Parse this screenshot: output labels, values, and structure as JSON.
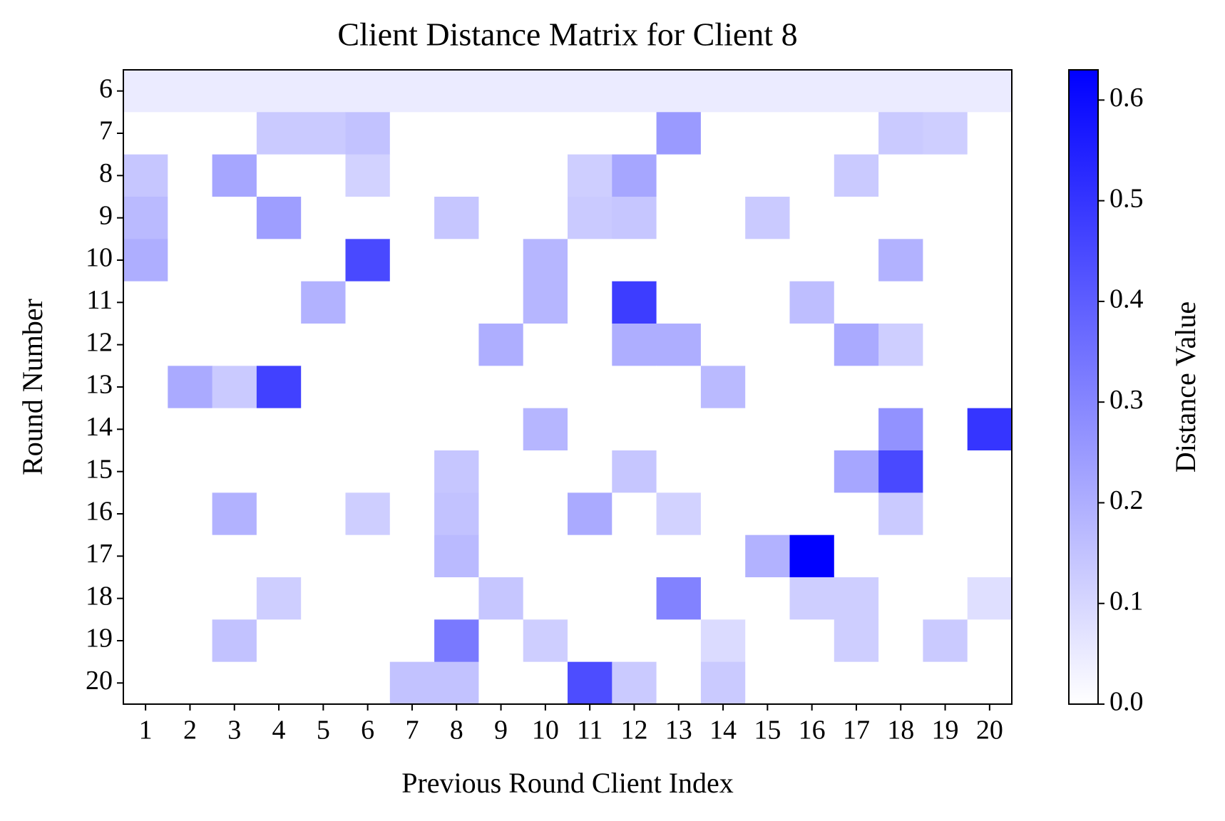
{
  "chart_data": {
    "type": "heatmap",
    "title": "Client Distance Matrix for Client 8",
    "x_label": "Previous Round Client Index",
    "y_label": "Round Number",
    "categories": [
      1,
      2,
      3,
      4,
      5,
      6,
      7,
      8,
      9,
      10,
      11,
      12,
      13,
      14,
      15,
      16,
      17,
      18,
      19,
      20
    ],
    "rows": [
      6,
      7,
      8,
      9,
      10,
      11,
      12,
      13,
      14,
      15,
      16,
      17,
      18,
      19,
      20
    ],
    "values": [
      [
        0.05,
        0.05,
        0.05,
        0.05,
        0.05,
        0.05,
        0.05,
        0.05,
        0.05,
        0.05,
        0.05,
        0.05,
        0.05,
        0.05,
        0.05,
        0.05,
        0.05,
        0.05,
        0.05,
        0.05
      ],
      [
        0,
        0,
        0,
        0.13,
        0.13,
        0.15,
        0,
        0,
        0,
        0,
        0,
        0,
        0.25,
        0,
        0,
        0,
        0,
        0.13,
        0.12,
        0
      ],
      [
        0.14,
        0,
        0.22,
        0,
        0,
        0.11,
        0,
        0,
        0,
        0,
        0.12,
        0.22,
        0,
        0,
        0,
        0,
        0.13,
        0,
        0,
        0
      ],
      [
        0.17,
        0,
        0,
        0.24,
        0,
        0,
        0,
        0.14,
        0,
        0,
        0.13,
        0.14,
        0,
        0,
        0.13,
        0,
        0,
        0,
        0,
        0
      ],
      [
        0.2,
        0,
        0,
        0,
        0,
        0.45,
        0,
        0,
        0,
        0.18,
        0,
        0,
        0,
        0,
        0,
        0,
        0,
        0.19,
        0,
        0
      ],
      [
        0,
        0,
        0,
        0,
        0.19,
        0,
        0,
        0,
        0,
        0.18,
        0,
        0.48,
        0,
        0,
        0,
        0.16,
        0,
        0,
        0,
        0
      ],
      [
        0,
        0,
        0,
        0,
        0,
        0,
        0,
        0,
        0.2,
        0,
        0,
        0.2,
        0.2,
        0,
        0,
        0,
        0.21,
        0.12,
        0,
        0
      ],
      [
        0,
        0.21,
        0.13,
        0.47,
        0,
        0,
        0,
        0,
        0,
        0,
        0,
        0,
        0,
        0.17,
        0,
        0,
        0,
        0,
        0,
        0
      ],
      [
        0,
        0,
        0,
        0,
        0,
        0,
        0,
        0,
        0,
        0.18,
        0,
        0,
        0,
        0,
        0,
        0,
        0,
        0.27,
        0,
        0.5
      ],
      [
        0,
        0,
        0,
        0,
        0,
        0,
        0,
        0.14,
        0,
        0,
        0,
        0.14,
        0,
        0,
        0,
        0,
        0.22,
        0.45,
        0,
        0
      ],
      [
        0,
        0,
        0.19,
        0,
        0,
        0.12,
        0,
        0.15,
        0,
        0,
        0.21,
        0,
        0.11,
        0,
        0,
        0,
        0,
        0.13,
        0,
        0
      ],
      [
        0,
        0,
        0,
        0,
        0,
        0,
        0,
        0.17,
        0,
        0,
        0,
        0,
        0,
        0,
        0.19,
        0.63,
        0,
        0,
        0,
        0
      ],
      [
        0,
        0,
        0,
        0.12,
        0,
        0,
        0,
        0,
        0.14,
        0,
        0,
        0,
        0.31,
        0,
        0,
        0.12,
        0.12,
        0,
        0,
        0.08
      ],
      [
        0,
        0,
        0.15,
        0,
        0,
        0,
        0,
        0.33,
        0,
        0.12,
        0,
        0,
        0,
        0.09,
        0,
        0,
        0.12,
        0,
        0.13,
        0
      ],
      [
        0,
        0,
        0,
        0,
        0,
        0,
        0.15,
        0.15,
        0,
        0,
        0.44,
        0.13,
        0,
        0.13,
        0,
        0,
        0,
        0,
        0,
        0
      ]
    ],
    "colormap": [
      "#ffffff",
      "#0000ff"
    ],
    "colorbar_label": "Distance Value",
    "clim": [
      0,
      0.63
    ],
    "colorbar_ticks": [
      {
        "value": 0,
        "label": "0.0"
      },
      0.1,
      0.2,
      0.3,
      0.4,
      0.5,
      0.6
    ]
  }
}
